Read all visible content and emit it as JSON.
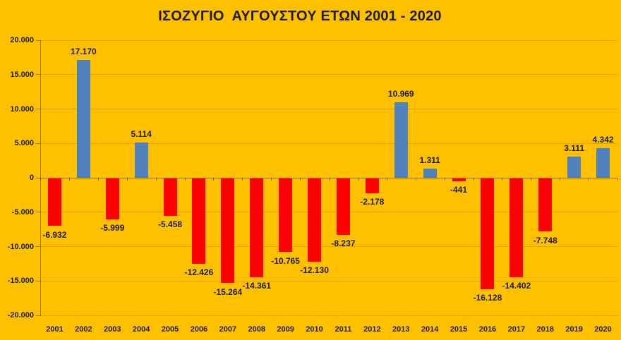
{
  "title": "ΙΣΟΖΥΓΙΟ  ΑΥΓΟΥΣΤΟΥ ΕΤΩΝ 2001 - 2020",
  "colors": {
    "background": "#FFC000",
    "positive_bar": "#4F81BD",
    "negative_bar": "#FE0000",
    "gridline": "rgba(0,0,0,0.13)",
    "axis": "rgba(0,0,0,0.40)",
    "text": "#1c1c1c"
  },
  "chart_data": {
    "type": "bar",
    "title": "ΙΣΟΖΥΓΙΟ  ΑΥΓΟΥΣΤΟΥ ΕΤΩΝ 2001 - 2020",
    "categories": [
      "2001",
      "2002",
      "2003",
      "2004",
      "2005",
      "2006",
      "2007",
      "2008",
      "2009",
      "2010",
      "2011",
      "2012",
      "2013",
      "2014",
      "2015",
      "2016",
      "2017",
      "2018",
      "2019",
      "2020"
    ],
    "values": [
      -6932,
      17170,
      -5999,
      5114,
      -5458,
      -12426,
      -15264,
      -14361,
      -10765,
      -12130,
      -8237,
      -2178,
      10969,
      1311,
      -441,
      -16128,
      -14402,
      -7748,
      3111,
      4342
    ],
    "value_labels": [
      "-6.932",
      "17.170",
      "-5.999",
      "5.114",
      "-5.458",
      "-12.426",
      "-15.264",
      "-14.361",
      "-10.765",
      "-12.130",
      "-8.237",
      "-2.178",
      "10.969",
      "1.311",
      "-441",
      "-16.128",
      "-14.402",
      "-7.748",
      "3.111",
      "4.342"
    ],
    "xlabel": "",
    "ylabel": "",
    "ylim": [
      -20000,
      20000
    ],
    "ytick_values": [
      20000,
      15000,
      10000,
      5000,
      0,
      -5000,
      -10000,
      -15000,
      -20000
    ],
    "ytick_labels": [
      "20.000",
      "15.000",
      "10.000",
      "5.000",
      "0",
      "-5.000",
      "-10.000",
      "-15.000",
      "-20.000"
    ],
    "grid": true,
    "legend": "none",
    "color_rule": "positive values blue, negative values red"
  }
}
